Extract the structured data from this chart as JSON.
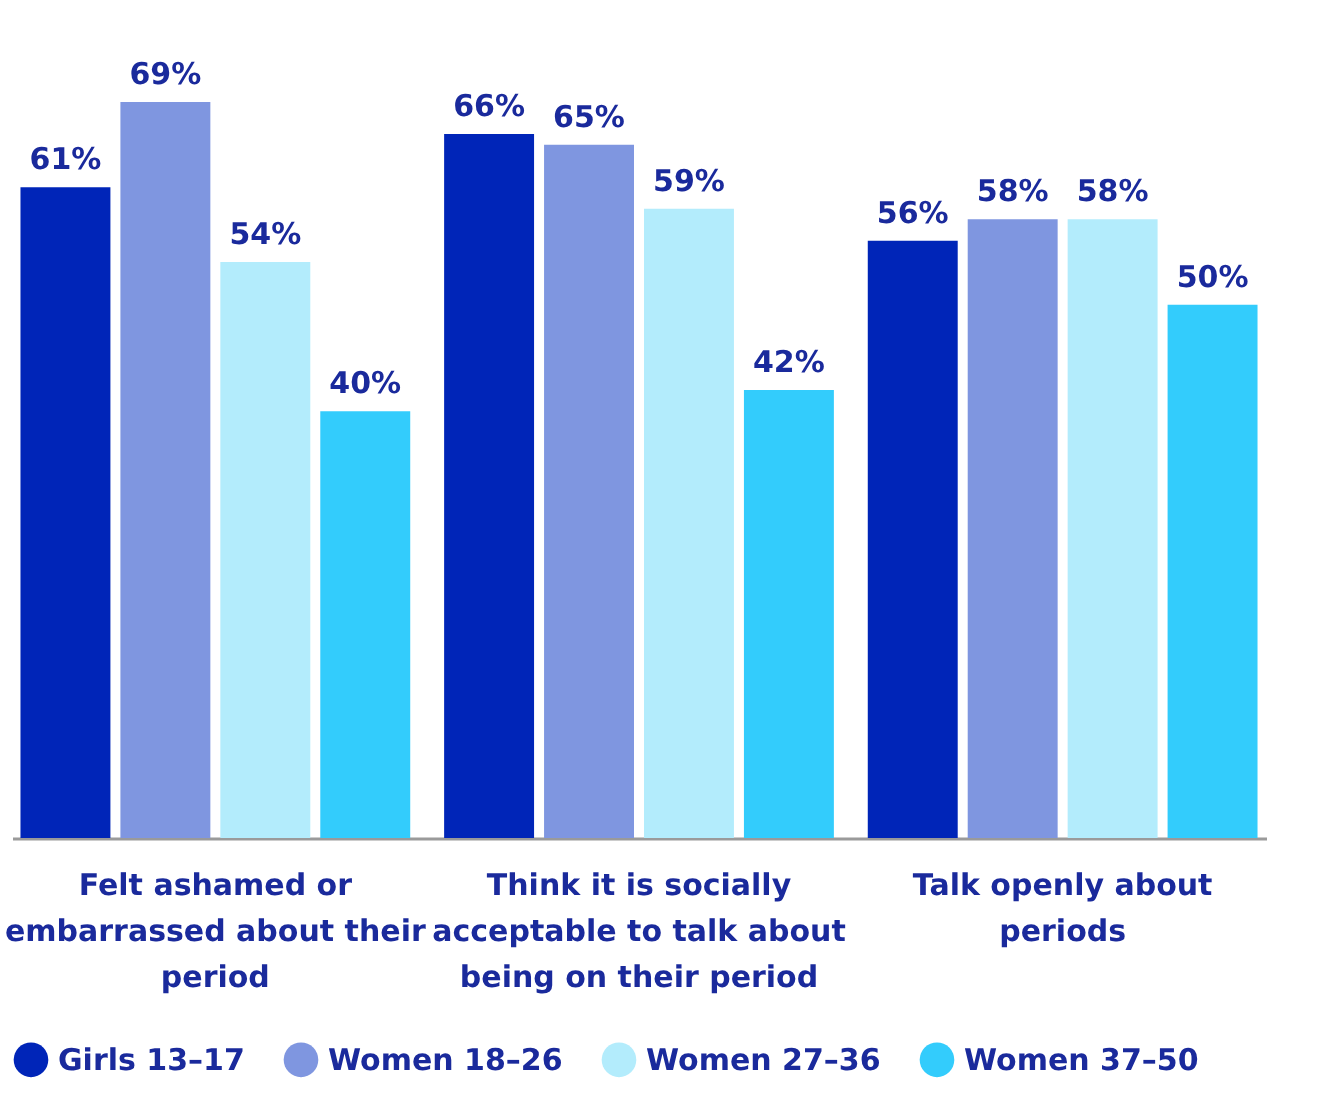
{
  "chart_data": {
    "type": "bar",
    "categories": [
      "Felt ashamed or embarrassed about their period",
      "Think it is socially acceptable to talk about being on their period",
      "Talk openly about periods"
    ],
    "series": [
      {
        "name": "Girls 13–17",
        "color": "#0025b8",
        "values": [
          61,
          66,
          56
        ],
        "value_labels": [
          "61%",
          "66%",
          "56%"
        ]
      },
      {
        "name": "Women 18–26",
        "color": "#7f96e0",
        "values": [
          69,
          65,
          58
        ],
        "value_labels": [
          "69%",
          "65%",
          "58%"
        ]
      },
      {
        "name": "Women 27–36",
        "color": "#b3ecfc",
        "values": [
          54,
          59,
          58
        ],
        "value_labels": [
          "54%",
          "59%",
          "58%"
        ]
      },
      {
        "name": "Women 37–50",
        "color": "#33ccfc",
        "values": [
          40,
          42,
          50
        ],
        "value_labels": [
          "40%",
          "42%",
          "50%"
        ]
      }
    ],
    "grid": false,
    "legend": "bottom"
  }
}
